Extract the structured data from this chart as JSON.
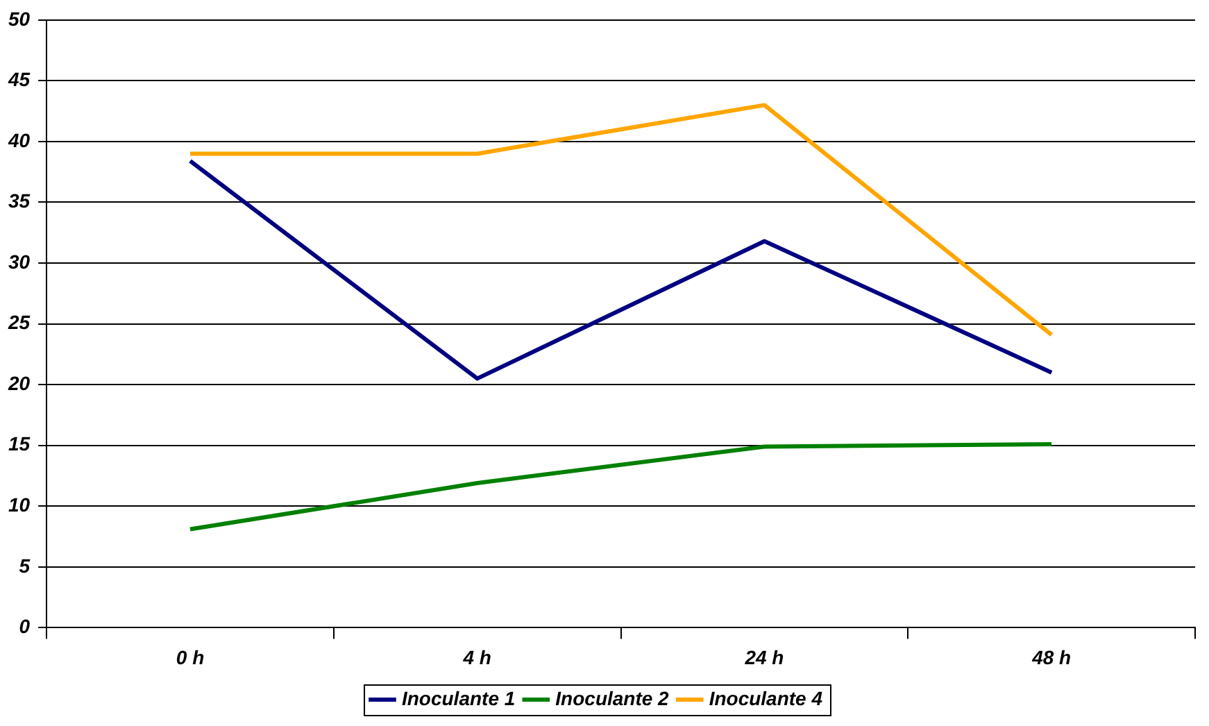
{
  "chart_data": {
    "type": "line",
    "categories": [
      "0 h",
      "4 h",
      "24 h",
      "48 h"
    ],
    "series": [
      {
        "name": "Inoculante 1",
        "color": "#000080",
        "values": [
          38.4,
          20.5,
          31.8,
          21.0
        ]
      },
      {
        "name": "Inoculante 2",
        "color": "#008000",
        "values": [
          8.1,
          11.9,
          14.9,
          15.1
        ]
      },
      {
        "name": "Inoculante 4",
        "color": "#ffa500",
        "values": [
          39.0,
          39.0,
          43.0,
          24.1
        ]
      }
    ],
    "ylim": [
      0,
      50
    ],
    "yticks": [
      0,
      5,
      10,
      15,
      20,
      25,
      30,
      35,
      40,
      45,
      50
    ],
    "grid": "y",
    "legend": "bottom",
    "marker": "none",
    "line_style": "solid"
  }
}
